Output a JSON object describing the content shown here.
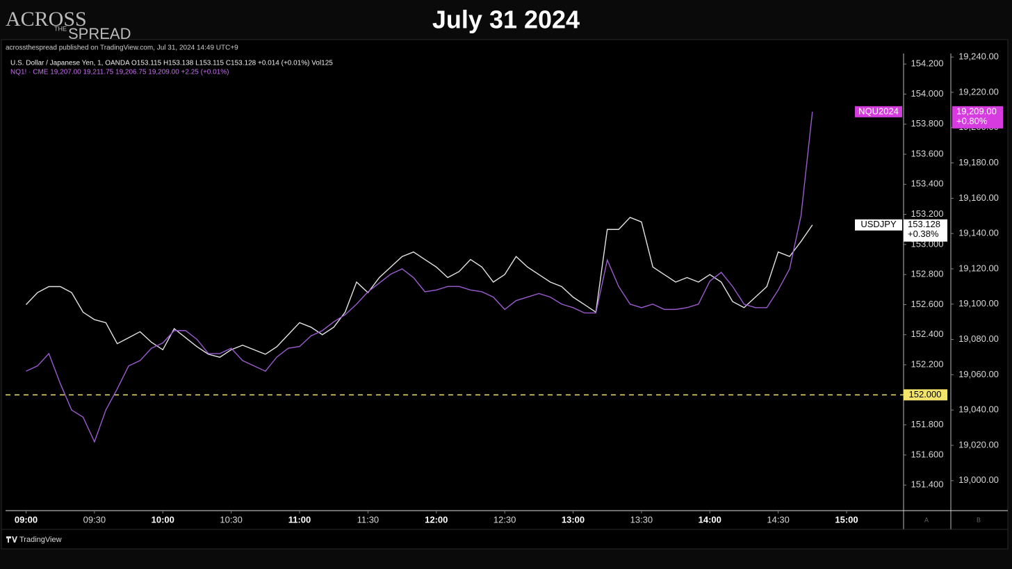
{
  "header": {
    "logo": [
      "ACROSS",
      "THE",
      "SPREAD"
    ],
    "title": "July 31 2024"
  },
  "published": "acrossthespread published on TradingView.com, Jul 31, 2024 14:49 UTC+9",
  "legend_lines": [
    "U.S. Dollar / Japanese Yen, 1, OANDA  O153.115  H153.138  L153.115  C153.128  +0.014 (+0.01%)  Vol125",
    "NQ1! · CME  19,207.00  19,211.75  19,206.75  19,209.00  +2.25 (+0.01%)"
  ],
  "footer": {
    "brand": "TradingView",
    "axis_a": "A",
    "axis_b": "B"
  },
  "chart_data": {
    "type": "line",
    "x": [
      540,
      545,
      550,
      555,
      560,
      565,
      570,
      575,
      580,
      585,
      590,
      595,
      600,
      605,
      610,
      615,
      620,
      625,
      630,
      635,
      640,
      645,
      650,
      655,
      660,
      665,
      670,
      675,
      680,
      685,
      690,
      695,
      700,
      705,
      710,
      715,
      720,
      725,
      730,
      735,
      740,
      745,
      750,
      755,
      760,
      765,
      770,
      775,
      780,
      785,
      790,
      795,
      800,
      805,
      810,
      815,
      820,
      825,
      830,
      835,
      840,
      845,
      850,
      855,
      860,
      865,
      870,
      875,
      880,
      885
    ],
    "xlim": [
      531,
      925
    ],
    "xticks": [
      {
        "value": 540,
        "label": "09:00"
      },
      {
        "value": 570,
        "label": "09:30"
      },
      {
        "value": 600,
        "label": "10:00"
      },
      {
        "value": 630,
        "label": "10:30"
      },
      {
        "value": 660,
        "label": "11:00"
      },
      {
        "value": 690,
        "label": "11:30"
      },
      {
        "value": 720,
        "label": "12:00"
      },
      {
        "value": 750,
        "label": "12:30"
      },
      {
        "value": 780,
        "label": "13:00"
      },
      {
        "value": 810,
        "label": "13:30"
      },
      {
        "value": 840,
        "label": "14:00"
      },
      {
        "value": 870,
        "label": "14:30"
      },
      {
        "value": 900,
        "label": "15:00"
      }
    ],
    "ylim": [
      151.23,
      154.27
    ],
    "yticks": [
      {
        "value": 151.4,
        "label": "151.400"
      },
      {
        "value": 151.6,
        "label": "151.600"
      },
      {
        "value": 151.8,
        "label": "151.800"
      },
      {
        "value": 152.0,
        "label": "152.000"
      },
      {
        "value": 152.2,
        "label": "152.200"
      },
      {
        "value": 152.4,
        "label": "152.400"
      },
      {
        "value": 152.6,
        "label": "152.600"
      },
      {
        "value": 152.8,
        "label": "152.800"
      },
      {
        "value": 153.0,
        "label": "153.000"
      },
      {
        "value": 153.2,
        "label": "153.200"
      },
      {
        "value": 153.4,
        "label": "153.400"
      },
      {
        "value": 153.6,
        "label": "153.600"
      },
      {
        "value": 153.8,
        "label": "153.800"
      },
      {
        "value": 154.0,
        "label": "154.000"
      },
      {
        "value": 154.2,
        "label": "154.200"
      }
    ],
    "y2lim": [
      18983,
      19242
    ],
    "y2ticks": [
      {
        "value": 19000,
        "label": "19,000.00"
      },
      {
        "value": 19020,
        "label": "19,020.00"
      },
      {
        "value": 19040,
        "label": "19,040.00"
      },
      {
        "value": 19060,
        "label": "19,060.00"
      },
      {
        "value": 19080,
        "label": "19,080.00"
      },
      {
        "value": 19100,
        "label": "19,100.00"
      },
      {
        "value": 19120,
        "label": "19,120.00"
      },
      {
        "value": 19140,
        "label": "19,140.00"
      },
      {
        "value": 19160,
        "label": "19,160.00"
      },
      {
        "value": 19180,
        "label": "19,180.00"
      },
      {
        "value": 19200,
        "label": "19,200.00"
      },
      {
        "value": 19220,
        "label": "19,220.00"
      },
      {
        "value": 19240,
        "label": "19,240.00"
      }
    ],
    "hlines": [
      {
        "value": 152.0,
        "label": "152.000",
        "color": "#f2e46b"
      }
    ],
    "series": [
      {
        "name": "USDJPY",
        "color": "#e4e4e4",
        "tag_color": "#ffffff",
        "last_label": [
          "153.128",
          "+0.38%"
        ],
        "values": [
          152.6,
          152.68,
          152.72,
          152.72,
          152.68,
          152.55,
          152.5,
          152.48,
          152.34,
          152.38,
          152.42,
          152.35,
          152.3,
          152.44,
          152.38,
          152.32,
          152.27,
          152.25,
          152.3,
          152.33,
          152.3,
          152.27,
          152.32,
          152.4,
          152.48,
          152.45,
          152.4,
          152.45,
          152.55,
          152.75,
          152.68,
          152.78,
          152.85,
          152.92,
          152.95,
          152.9,
          152.85,
          152.78,
          152.82,
          152.9,
          152.85,
          152.75,
          152.8,
          152.92,
          152.85,
          152.8,
          152.75,
          152.72,
          152.65,
          152.6,
          152.55,
          153.1,
          153.1,
          153.18,
          153.15,
          152.85,
          152.8,
          152.75,
          152.78,
          152.75,
          152.8,
          152.75,
          152.62,
          152.58,
          152.65,
          152.72,
          152.95,
          152.92,
          153.02,
          153.13
        ]
      },
      {
        "name": "NQU2024",
        "axis": "y2",
        "color": "#9c5bd0",
        "tag_color": "#d63be0",
        "last_label": [
          "19,209.00",
          "+0.80%"
        ],
        "values": [
          19062,
          19065,
          19072,
          19055,
          19040,
          19036,
          19022,
          19040,
          19052,
          19065,
          19068,
          19075,
          19078,
          19085,
          19085,
          19080,
          19072,
          19072,
          19075,
          19068,
          19065,
          19062,
          19070,
          19075,
          19076,
          19082,
          19085,
          19090,
          19094,
          19100,
          19107,
          19112,
          19117,
          19120,
          19115,
          19107,
          19108,
          19110,
          19110,
          19108,
          19107,
          19104,
          19097,
          19102,
          19104,
          19106,
          19104,
          19100,
          19098,
          19095,
          19095,
          19125,
          19110,
          19100,
          19098,
          19100,
          19097,
          19097,
          19098,
          19100,
          19113,
          19118,
          19110,
          19100,
          19098,
          19098,
          19108,
          19120,
          19150,
          19209
        ]
      }
    ]
  }
}
